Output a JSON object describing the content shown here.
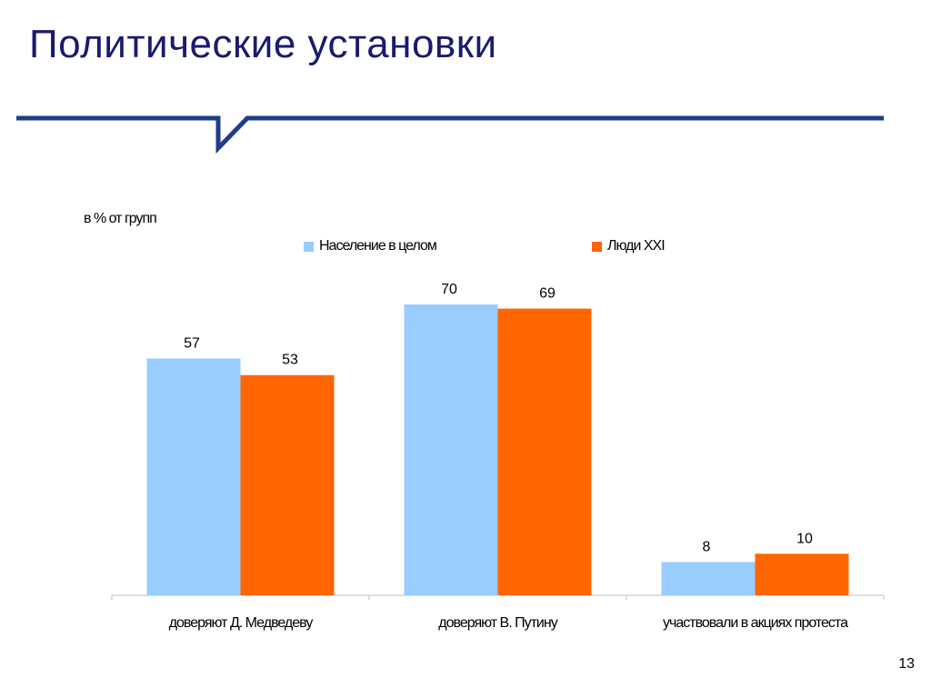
{
  "slide": {
    "title": "Политические установки",
    "page_number": "13"
  },
  "chart_data": {
    "type": "bar",
    "unit_label": "в % от групп",
    "categories": [
      "доверяют Д. Медведеву",
      "доверяют В. Путину",
      "участвовали в акциях протеста"
    ],
    "series": [
      {
        "name": "Население в целом",
        "color": "#99ccff",
        "values": [
          57,
          70,
          8
        ]
      },
      {
        "name": "Люди XXI",
        "color": "#ff6600",
        "values": [
          53,
          69,
          10
        ]
      }
    ],
    "ylim": [
      0,
      70
    ],
    "grid": false,
    "legend_position": "top"
  },
  "colors": {
    "title": "#1a1a6e",
    "header_rule": "#1f3c88",
    "axis": "#bfbfbf"
  }
}
